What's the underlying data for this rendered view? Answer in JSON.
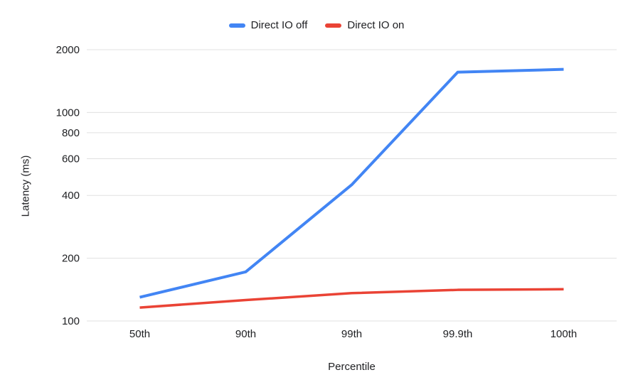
{
  "chart_data": {
    "type": "line",
    "title": "",
    "categories": [
      "50th",
      "90th",
      "99th",
      "99.9th",
      "100th"
    ],
    "series": [
      {
        "name": "Direct IO off",
        "color": "#4285f4",
        "values": [
          130,
          172,
          450,
          1560,
          1610
        ]
      },
      {
        "name": "Direct IO on",
        "color": "#ea4335",
        "values": [
          116,
          126,
          136,
          141,
          142
        ]
      }
    ],
    "xlabel": "Percentile",
    "ylabel": "Latency (ms)",
    "yscale": "log",
    "ylim": [
      100,
      2000
    ],
    "yticks": [
      100,
      200,
      400,
      600,
      800,
      1000,
      2000
    ],
    "grid": true,
    "legend_position": "top",
    "gridline_color": "#e0e0e0",
    "text_color": "#202124"
  }
}
